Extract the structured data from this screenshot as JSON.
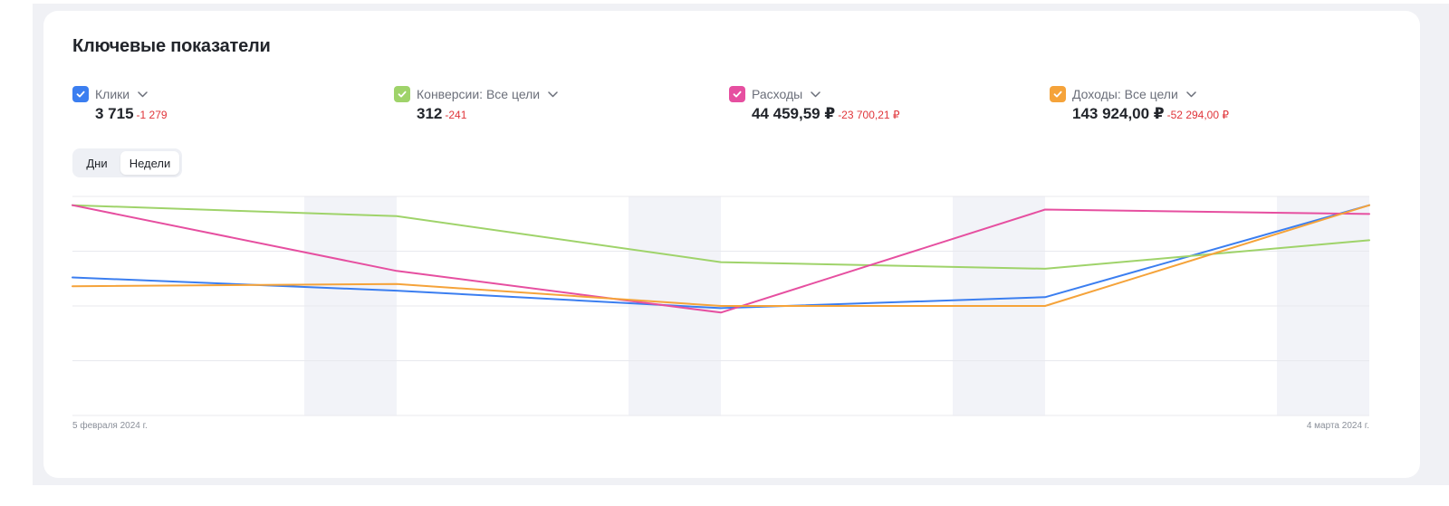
{
  "title": "Ключевые показатели",
  "colors": {
    "clicks": "#3b7ef0",
    "conversions": "#9fd36a",
    "expenses": "#e64fa0",
    "income": "#f5a33a",
    "delta_negative": "#e0353a"
  },
  "metrics": [
    {
      "key": "clicks",
      "name": "Клики",
      "value": "3 715",
      "delta": "-1 279",
      "checked": true,
      "icon": "checkmark-icon"
    },
    {
      "key": "conversions",
      "name": "Конверсии: Все цели",
      "value": "312",
      "delta": "-241",
      "checked": true,
      "icon": "checkmark-icon"
    },
    {
      "key": "expenses",
      "name": "Расходы",
      "value": "44 459,59 ₽",
      "delta": "-23 700,21 ₽",
      "checked": true,
      "icon": "checkmark-icon"
    },
    {
      "key": "income",
      "name": "Доходы: Все цели",
      "value": "143 924,00 ₽",
      "delta": "-52 294,00 ₽",
      "checked": true,
      "icon": "checkmark-icon"
    }
  ],
  "period_toggle": {
    "days_label": "Дни",
    "weeks_label": "Недели",
    "selected": "Недели"
  },
  "chart_data": {
    "type": "line",
    "x_start_label": "5 февраля 2024 г.",
    "x_end_label": "4 марта 2024 г.",
    "x_points": 5,
    "y_normalized": true,
    "ylim": [
      0,
      1
    ],
    "grid": true,
    "legend": "top",
    "series": [
      {
        "name": "Клики",
        "color": "#3b7ef0",
        "values": [
          0.63,
          0.57,
          0.49,
          0.54,
          0.96
        ]
      },
      {
        "name": "Конверсии: Все цели",
        "color": "#9fd36a",
        "values": [
          0.96,
          0.91,
          0.7,
          0.67,
          0.8
        ]
      },
      {
        "name": "Расходы",
        "color": "#e64fa0",
        "values": [
          0.96,
          0.66,
          0.47,
          0.94,
          0.92
        ]
      },
      {
        "name": "Доходы: Все цели",
        "color": "#f5a33a",
        "values": [
          0.59,
          0.6,
          0.5,
          0.5,
          0.96
        ]
      }
    ]
  }
}
